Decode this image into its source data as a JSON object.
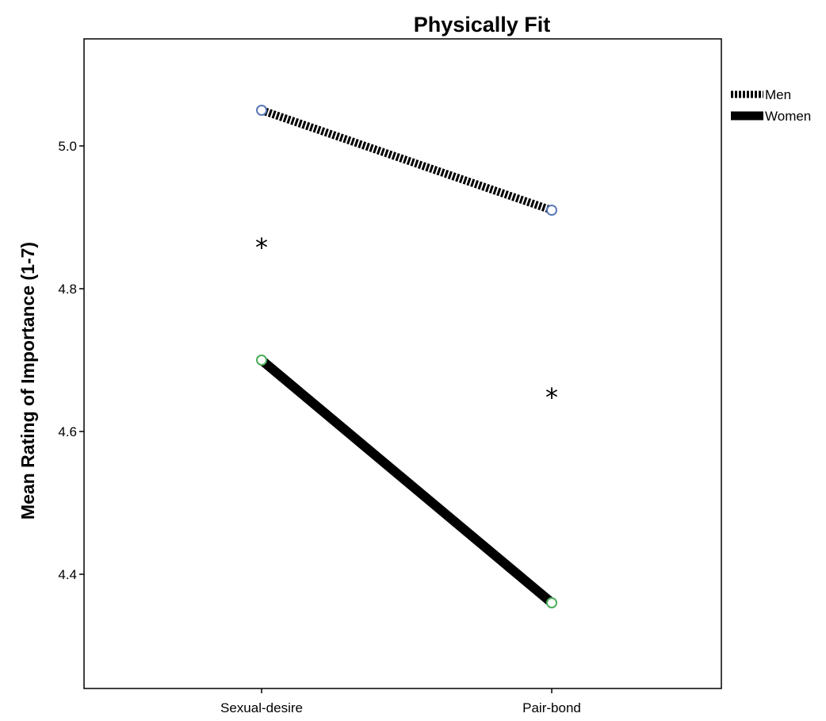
{
  "chart_data": {
    "type": "line",
    "title": "Physically Fit",
    "xlabel": "",
    "ylabel": "Mean Rating of Importance (1-7)",
    "categories": [
      "Sexual-desire",
      "Pair-bond"
    ],
    "yticks": [
      "4.4",
      "4.6",
      "4.8",
      "5.0"
    ],
    "ylim": [
      4.24,
      5.15
    ],
    "grid": false,
    "legend_position": "top-right",
    "series": [
      {
        "name": "Men",
        "values": [
          5.05,
          4.91
        ],
        "line_style": "dotted-thick",
        "marker_color": "#5b78b8"
      },
      {
        "name": "Women",
        "values": [
          4.7,
          4.36
        ],
        "line_style": "solid-thick",
        "marker_color": "#4caf5a"
      }
    ],
    "annotations": [
      {
        "text": "*",
        "category": "Sexual-desire",
        "y": 4.87
      },
      {
        "text": "*",
        "category": "Pair-bond",
        "y": 4.66
      }
    ]
  }
}
